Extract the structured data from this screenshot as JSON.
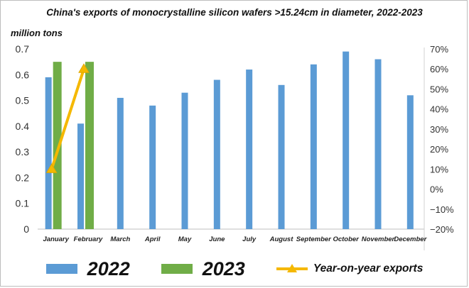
{
  "chart_data": {
    "type": "bar",
    "title": "China's exports of monocrystalline silicon wafers >15.24cm in diameter, 2022-2023",
    "ylabel": "million tons",
    "categories": [
      "January",
      "February",
      "March",
      "April",
      "May",
      "June",
      "July",
      "August",
      "September",
      "October",
      "November",
      "December"
    ],
    "series": [
      {
        "name": "2022",
        "type": "bar",
        "axis": "left",
        "values": [
          0.59,
          0.41,
          0.51,
          0.48,
          0.53,
          0.58,
          0.62,
          0.56,
          0.64,
          0.69,
          0.66,
          0.52
        ]
      },
      {
        "name": "2023",
        "type": "bar",
        "axis": "left",
        "values": [
          0.65,
          0.65,
          null,
          null,
          null,
          null,
          null,
          null,
          null,
          null,
          null,
          null
        ]
      },
      {
        "name": "Year-on-year exports",
        "type": "line",
        "axis": "right",
        "values": [
          10,
          60,
          null,
          null,
          null,
          null,
          null,
          null,
          null,
          null,
          null,
          null
        ]
      }
    ],
    "ylim": [
      0,
      0.7
    ],
    "yticks": [
      "0",
      "0.1",
      "0.2",
      "0.3",
      "0.4",
      "0.5",
      "0.6",
      "0.7"
    ],
    "ylim_right": [
      -20,
      70
    ],
    "yticks_right": [
      "−20%",
      "−10%",
      "0%",
      "10%",
      "20%",
      "30%",
      "40%",
      "50%",
      "60%",
      "70%"
    ],
    "legend_position": "bottom"
  },
  "colors": {
    "s2022": "#5b9bd5",
    "s2023": "#70ad47",
    "yoy": "#f5b800"
  },
  "legend": {
    "label_2022": "2022",
    "label_2023": "2023",
    "label_yoy": "Year-on-year exports"
  }
}
